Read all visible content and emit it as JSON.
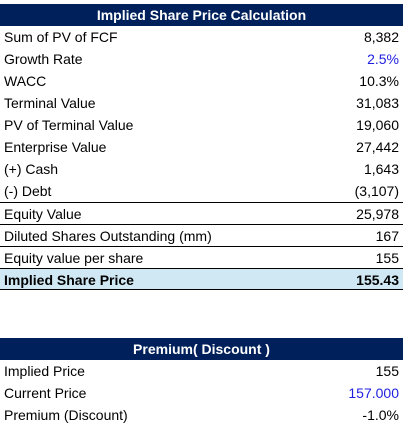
{
  "implied_share_price_calculation": {
    "title": "Implied Share Price Calculation",
    "rows": [
      {
        "label": "Sum of PV of FCF",
        "value": "8,382"
      },
      {
        "label": "Growth Rate",
        "value": "2.5%"
      },
      {
        "label": "WACC",
        "value": "10.3%"
      },
      {
        "label": "Terminal Value",
        "value": "31,083"
      },
      {
        "label": "PV of Terminal Value",
        "value": "19,060"
      },
      {
        "label": "Enterprise Value",
        "value": "27,442"
      },
      {
        "label": "(+) Cash",
        "value": "1,643"
      },
      {
        "label": "(-) Debt",
        "value": "(3,107)"
      },
      {
        "label": "Equity Value",
        "value": "25,978"
      },
      {
        "label": "Diluted Shares Outstanding (mm)",
        "value": "167"
      },
      {
        "label": "Equity value per share",
        "value": "155"
      },
      {
        "label": "Implied Share Price",
        "value": "155.43"
      }
    ]
  },
  "premium_discount": {
    "title": "Premium( Discount )",
    "rows": [
      {
        "label": "Implied Price",
        "value": "155"
      },
      {
        "label": "Current Price",
        "value": "157.000"
      },
      {
        "label": "Premium (Discount)",
        "value": "-1.0%"
      }
    ]
  },
  "colors": {
    "header_background": "#00205b",
    "header_text": "#ffffff",
    "input_value_text": "#1f1fdf",
    "highlight_background": "#cfe8f4"
  }
}
